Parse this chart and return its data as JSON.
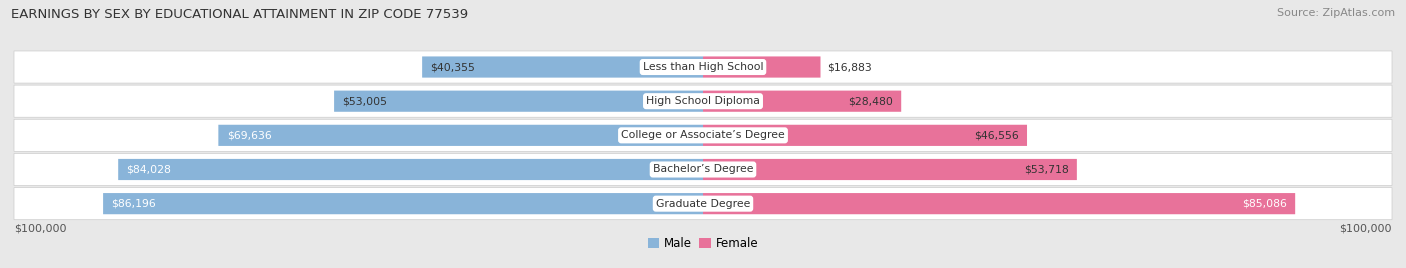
{
  "title": "EARNINGS BY SEX BY EDUCATIONAL ATTAINMENT IN ZIP CODE 77539",
  "source": "Source: ZipAtlas.com",
  "categories": [
    "Less than High School",
    "High School Diploma",
    "College or Associate’s Degree",
    "Bachelor’s Degree",
    "Graduate Degree"
  ],
  "male_values": [
    40355,
    53005,
    69636,
    84028,
    86196
  ],
  "female_values": [
    16883,
    28480,
    46556,
    53718,
    85086
  ],
  "max_value": 100000,
  "male_color": "#89b4d9",
  "female_color": "#e8729a",
  "bg_color": "#e8e8e8",
  "row_bg_color": "#f4f4f4",
  "xlabel_left": "$100,000",
  "xlabel_right": "$100,000",
  "legend_male": "Male",
  "legend_female": "Female"
}
